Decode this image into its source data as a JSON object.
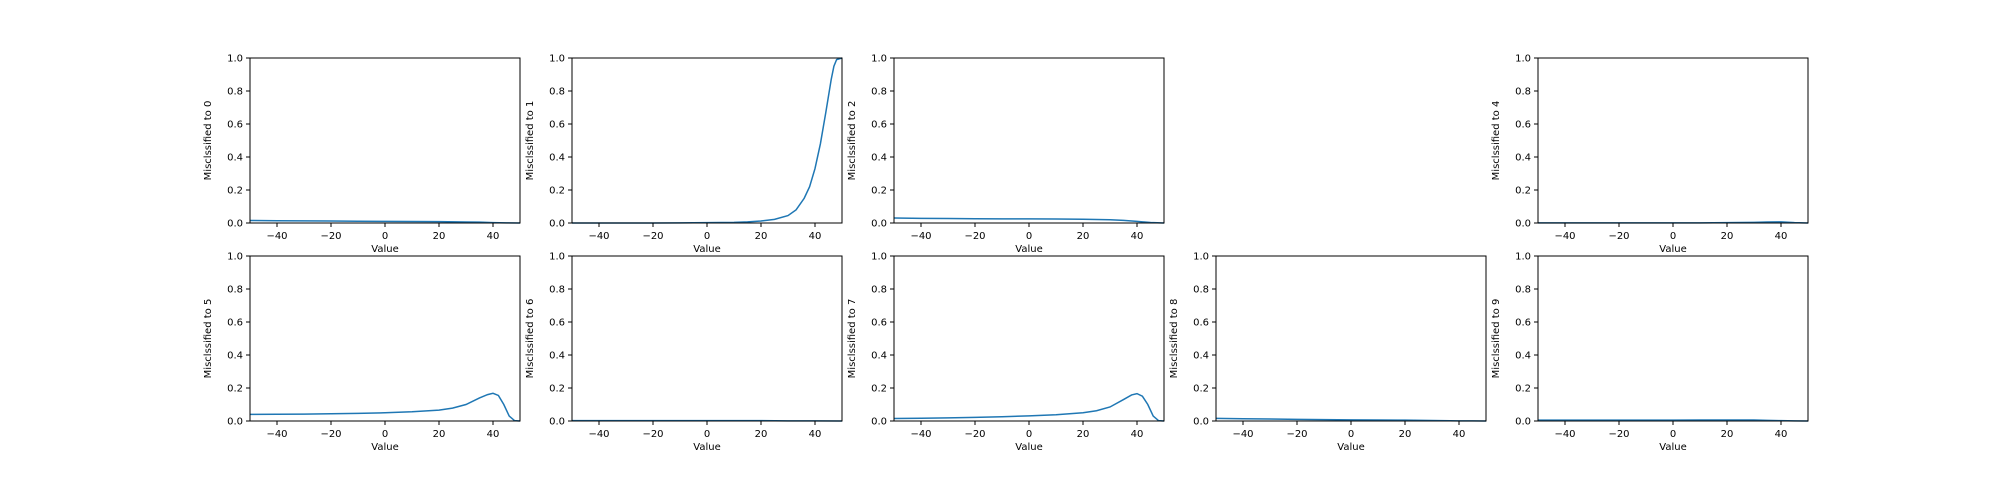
{
  "colors": {
    "series": "#1f77b4",
    "axis": "#000000",
    "background": "#ffffff"
  },
  "chart_data": [
    {
      "type": "line",
      "ylabel": "Misclssified to 0",
      "xlabel": "Value",
      "xlim": [
        -50,
        50
      ],
      "ylim": [
        0,
        1
      ],
      "xticks": [
        -40,
        -20,
        0,
        20,
        40
      ],
      "yticks": [
        0.0,
        0.2,
        0.4,
        0.6,
        0.8,
        1.0
      ],
      "grid": false,
      "series": [
        {
          "x": [
            -50,
            -40,
            -30,
            -20,
            -10,
            0,
            10,
            20,
            30,
            35,
            40,
            45,
            50
          ],
          "y": [
            0.015,
            0.014,
            0.013,
            0.012,
            0.011,
            0.01,
            0.009,
            0.008,
            0.006,
            0.005,
            0.002,
            0.0005,
            0.0
          ]
        }
      ]
    },
    {
      "type": "line",
      "ylabel": "Misclssified to 1",
      "xlabel": "Value",
      "xlim": [
        -50,
        50
      ],
      "ylim": [
        0,
        1
      ],
      "xticks": [
        -40,
        -20,
        0,
        20,
        40
      ],
      "yticks": [
        0.0,
        0.2,
        0.4,
        0.6,
        0.8,
        1.0
      ],
      "grid": false,
      "series": [
        {
          "x": [
            -50,
            -40,
            -30,
            -20,
            -10,
            0,
            10,
            15,
            20,
            25,
            30,
            33,
            36,
            38,
            40,
            42,
            44,
            46,
            47,
            48,
            50
          ],
          "y": [
            0.0,
            0.0,
            0.0,
            0.0,
            0.001,
            0.002,
            0.004,
            0.007,
            0.012,
            0.022,
            0.045,
            0.08,
            0.15,
            0.22,
            0.33,
            0.48,
            0.67,
            0.87,
            0.95,
            0.99,
            1.0
          ]
        }
      ]
    },
    {
      "type": "line",
      "ylabel": "Misclssified to 2",
      "xlabel": "Value",
      "xlim": [
        -50,
        50
      ],
      "ylim": [
        0,
        1
      ],
      "xticks": [
        -40,
        -20,
        0,
        20,
        40
      ],
      "yticks": [
        0.0,
        0.2,
        0.4,
        0.6,
        0.8,
        1.0
      ],
      "grid": false,
      "series": [
        {
          "x": [
            -50,
            -40,
            -30,
            -20,
            -10,
            0,
            10,
            20,
            30,
            35,
            40,
            45,
            50
          ],
          "y": [
            0.03,
            0.028,
            0.027,
            0.026,
            0.025,
            0.025,
            0.024,
            0.023,
            0.02,
            0.016,
            0.01,
            0.003,
            0.0
          ]
        }
      ]
    },
    null,
    {
      "type": "line",
      "ylabel": "Misclssified to 4",
      "xlabel": "Value",
      "xlim": [
        -50,
        50
      ],
      "ylim": [
        0,
        1
      ],
      "xticks": [
        -40,
        -20,
        0,
        20,
        40
      ],
      "yticks": [
        0.0,
        0.2,
        0.4,
        0.6,
        0.8,
        1.0
      ],
      "grid": false,
      "series": [
        {
          "x": [
            -50,
            -40,
            -30,
            -20,
            -10,
            0,
            10,
            20,
            30,
            35,
            40,
            45,
            50
          ],
          "y": [
            0.001,
            0.001,
            0.001,
            0.001,
            0.001,
            0.001,
            0.001,
            0.002,
            0.004,
            0.006,
            0.007,
            0.002,
            0.0
          ]
        }
      ]
    },
    {
      "type": "line",
      "ylabel": "Misclssified to 5",
      "xlabel": "Value",
      "xlim": [
        -50,
        50
      ],
      "ylim": [
        0,
        1
      ],
      "xticks": [
        -40,
        -20,
        0,
        20,
        40
      ],
      "yticks": [
        0.0,
        0.2,
        0.4,
        0.6,
        0.8,
        1.0
      ],
      "grid": false,
      "series": [
        {
          "x": [
            -50,
            -40,
            -30,
            -20,
            -10,
            0,
            10,
            20,
            25,
            30,
            35,
            38,
            40,
            42,
            44,
            46,
            48,
            50
          ],
          "y": [
            0.04,
            0.041,
            0.042,
            0.044,
            0.046,
            0.05,
            0.056,
            0.066,
            0.078,
            0.1,
            0.14,
            0.16,
            0.168,
            0.155,
            0.1,
            0.03,
            0.002,
            0.0
          ]
        }
      ]
    },
    {
      "type": "line",
      "ylabel": "Misclssified to 6",
      "xlabel": "Value",
      "xlim": [
        -50,
        50
      ],
      "ylim": [
        0,
        1
      ],
      "xticks": [
        -40,
        -20,
        0,
        20,
        40
      ],
      "yticks": [
        0.0,
        0.2,
        0.4,
        0.6,
        0.8,
        1.0
      ],
      "grid": false,
      "series": [
        {
          "x": [
            -50,
            -40,
            -30,
            -20,
            -10,
            0,
            10,
            20,
            30,
            40,
            50
          ],
          "y": [
            0.002,
            0.002,
            0.002,
            0.002,
            0.002,
            0.002,
            0.002,
            0.002,
            0.001,
            0.0005,
            0.0
          ]
        }
      ]
    },
    {
      "type": "line",
      "ylabel": "Misclssified to 7",
      "xlabel": "Value",
      "xlim": [
        -50,
        50
      ],
      "ylim": [
        0,
        1
      ],
      "xticks": [
        -40,
        -20,
        0,
        20,
        40
      ],
      "yticks": [
        0.0,
        0.2,
        0.4,
        0.6,
        0.8,
        1.0
      ],
      "grid": false,
      "series": [
        {
          "x": [
            -50,
            -40,
            -30,
            -20,
            -10,
            0,
            10,
            20,
            25,
            30,
            35,
            38,
            40,
            42,
            44,
            46,
            48,
            50
          ],
          "y": [
            0.015,
            0.017,
            0.019,
            0.022,
            0.026,
            0.031,
            0.038,
            0.05,
            0.062,
            0.085,
            0.13,
            0.158,
            0.166,
            0.15,
            0.1,
            0.03,
            0.002,
            0.0
          ]
        }
      ]
    },
    {
      "type": "line",
      "ylabel": "Misclssified to 8",
      "xlabel": "Value",
      "xlim": [
        -50,
        50
      ],
      "ylim": [
        0,
        1
      ],
      "xticks": [
        -40,
        -20,
        0,
        20,
        40
      ],
      "yticks": [
        0.0,
        0.2,
        0.4,
        0.6,
        0.8,
        1.0
      ],
      "grid": false,
      "series": [
        {
          "x": [
            -50,
            -40,
            -30,
            -20,
            -10,
            0,
            10,
            20,
            30,
            40,
            45,
            50
          ],
          "y": [
            0.016,
            0.014,
            0.012,
            0.01,
            0.008,
            0.007,
            0.006,
            0.005,
            0.003,
            0.001,
            0.0005,
            0.0
          ]
        }
      ]
    },
    {
      "type": "line",
      "ylabel": "Misclssified to 9",
      "xlabel": "Value",
      "xlim": [
        -50,
        50
      ],
      "ylim": [
        0,
        1
      ],
      "xticks": [
        -40,
        -20,
        0,
        20,
        40
      ],
      "yticks": [
        0.0,
        0.2,
        0.4,
        0.6,
        0.8,
        1.0
      ],
      "grid": false,
      "series": [
        {
          "x": [
            -50,
            -40,
            -30,
            -20,
            -10,
            0,
            10,
            20,
            30,
            35,
            40,
            45,
            50
          ],
          "y": [
            0.005,
            0.005,
            0.005,
            0.005,
            0.005,
            0.005,
            0.006,
            0.006,
            0.006,
            0.004,
            0.002,
            0.0005,
            0.0
          ]
        }
      ]
    }
  ]
}
